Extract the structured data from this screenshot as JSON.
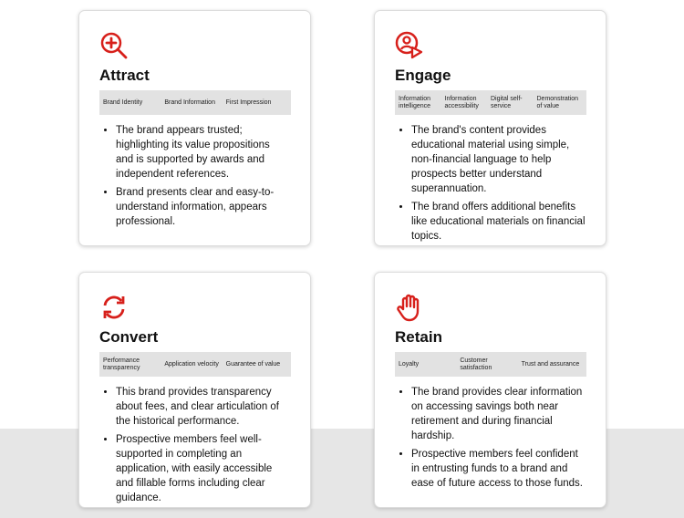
{
  "accent": "#d7201b",
  "cards": [
    {
      "title": "Attract",
      "icon": "magnify-plus-icon",
      "tags": [
        "Brand Identity",
        "Brand Information",
        "First Impression"
      ],
      "bullets": [
        "The brand appears trusted; highlighting its value propositions and is supported by awards and independent references.",
        "Brand presents clear and easy-to-understand information, appears professional."
      ]
    },
    {
      "title": "Engage",
      "icon": "user-pointer-icon",
      "tags": [
        "Information intelligence",
        "Information accessibility",
        "Digital self-service",
        "Demonstration of value"
      ],
      "bullets": [
        "The brand's content provides educational material using simple, non-financial language to help prospects better understand superannuation.",
        "The brand offers additional benefits like educational materials on financial topics."
      ]
    },
    {
      "title": "Convert",
      "icon": "refresh-icon",
      "tags": [
        "Performance transparency",
        "Application velocity",
        "Guarantee of value"
      ],
      "bullets": [
        "This brand provides transparency about fees, and clear articulation of the historical performance.",
        "Prospective members feel well-supported in completing an application, with easily accessible and fillable forms including clear guidance."
      ]
    },
    {
      "title": "Retain",
      "icon": "hand-icon",
      "tags": [
        "Loyalty",
        "Customer satisfaction",
        "Trust and assurance"
      ],
      "bullets": [
        "The brand provides clear information on accessing savings both near retirement and during financial hardship.",
        "Prospective members feel confident in entrusting funds to a brand and ease of future access to those funds."
      ]
    }
  ]
}
